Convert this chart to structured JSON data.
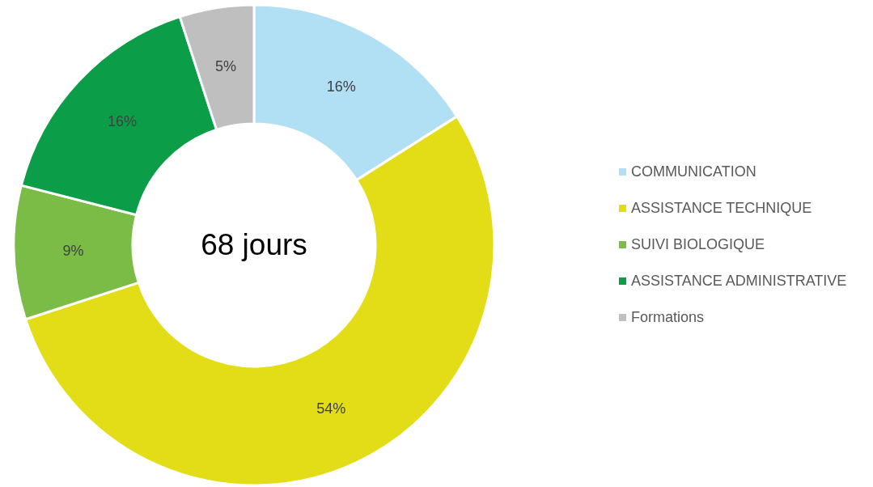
{
  "chart_data": {
    "type": "donut",
    "categories": [
      "COMMUNICATION",
      "ASSISTANCE TECHNIQUE",
      "SUIVI BIOLOGIQUE",
      "ASSISTANCE ADMINISTRATIVE",
      "Formations"
    ],
    "values": [
      16,
      54,
      9,
      16,
      5
    ],
    "colors": [
      "#b1dff4",
      "#e3dd18",
      "#7bbc46",
      "#0c9d48",
      "#bfbfbf"
    ],
    "value_labels": [
      "16%",
      "54%",
      "9%",
      "16%",
      "5%"
    ],
    "annotations": [
      "68 jours"
    ],
    "legend": "right"
  }
}
